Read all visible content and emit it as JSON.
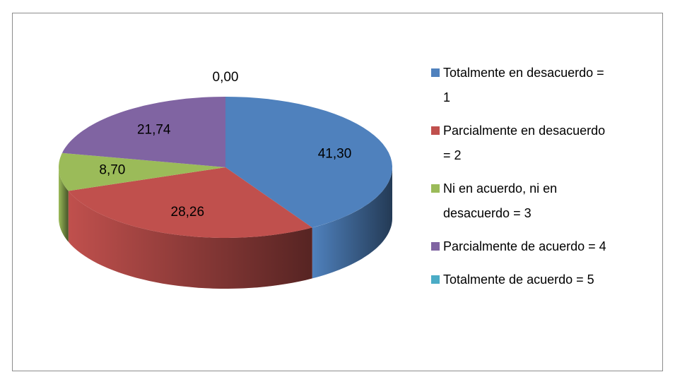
{
  "chart_data": {
    "type": "pie3d",
    "categories": [
      "Totalmente en desacuerdo = 1",
      "Parcialmente en desacuerdo = 2",
      "Ni en acuerdo, ni en desacuerdo = 3",
      "Parcialmente de acuerdo = 4",
      "Totalmente de acuerdo = 5"
    ],
    "values": [
      41.3,
      28.26,
      8.7,
      21.74,
      0.0
    ],
    "value_labels": [
      "41,30",
      "28,26",
      "8,70",
      "21,74",
      "0,00"
    ],
    "colors": [
      "#4f81bd",
      "#c0504d",
      "#9bbb59",
      "#8064a2",
      "#4bacc6"
    ],
    "legend": "right"
  }
}
